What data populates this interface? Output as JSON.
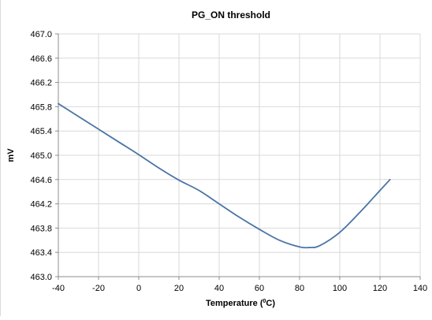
{
  "chart_data": {
    "type": "line",
    "title": "PG_ON threshold",
    "xlabel": "Temperature",
    "xlabel_unit_base": "(",
    "xlabel_unit_sup": "0",
    "xlabel_unit_tail": "C)",
    "ylabel": "mV",
    "xlim": [
      -40,
      140
    ],
    "ylim": [
      463.0,
      467.0
    ],
    "x_ticks": [
      "-40",
      "-20",
      "0",
      "20",
      "40",
      "60",
      "80",
      "100",
      "120",
      "140"
    ],
    "y_ticks": [
      "463.0",
      "463.4",
      "463.8",
      "464.2",
      "464.6",
      "465.0",
      "465.4",
      "465.8",
      "466.2",
      "466.6",
      "467.0"
    ],
    "grid": true,
    "legend": "none",
    "line_color": "#4a74a5",
    "grid_color": "#d9d9d9",
    "series": [
      {
        "x": [
          -40,
          -30,
          -20,
          -10,
          0,
          10,
          20,
          30,
          40,
          50,
          60,
          70,
          80,
          85,
          90,
          100,
          110,
          120,
          125
        ],
        "y": [
          465.85,
          465.64,
          465.43,
          465.22,
          465.01,
          464.79,
          464.59,
          464.42,
          464.2,
          463.98,
          463.78,
          463.6,
          463.49,
          463.48,
          463.51,
          463.73,
          464.06,
          464.42,
          464.6
        ]
      }
    ]
  }
}
